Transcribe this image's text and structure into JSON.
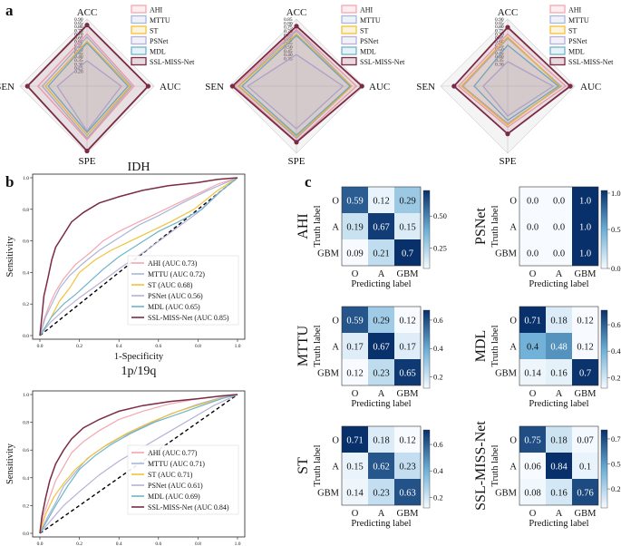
{
  "panel_labels": {
    "a": "a",
    "b": "b",
    "c": "c"
  },
  "series_colors": {
    "AHI": "#f4a6b0",
    "MTTU": "#a9b7d8",
    "ST": "#f2c23a",
    "PSNet": "#b8b0d8",
    "MDL": "#6fb5cc",
    "SSL-MISS-Net": "#7b2b44",
    "diagonal": "#000000"
  },
  "chart_data": [
    {
      "type": "radar",
      "id": "radar-1",
      "axes": [
        "ACC",
        "AUC",
        "SPE",
        "SEN"
      ],
      "tick_labels": [
        "0.90",
        "0.85",
        "0.80",
        "0.75",
        "0.70",
        "0.65",
        "0.60",
        "0.55",
        "0.50",
        "0.45",
        "0.40",
        "0.35",
        "0.30",
        "0.25",
        "0.20"
      ],
      "range": [
        0.0,
        0.9
      ],
      "legend": [
        "AHI",
        "MTTU",
        "ST",
        "PSNet",
        "MDL",
        "SSL-MISS-Net"
      ],
      "series": [
        {
          "name": "AHI",
          "values": [
            0.7,
            0.63,
            0.72,
            0.66
          ]
        },
        {
          "name": "MTTU",
          "values": [
            0.66,
            0.6,
            0.7,
            0.6
          ]
        },
        {
          "name": "ST",
          "values": [
            0.6,
            0.58,
            0.66,
            0.56
          ]
        },
        {
          "name": "PSNet",
          "values": [
            0.34,
            0.46,
            0.6,
            0.4
          ]
        },
        {
          "name": "MDL",
          "values": [
            0.58,
            0.55,
            0.62,
            0.52
          ]
        },
        {
          "name": "SSL-MISS-Net",
          "values": [
            0.82,
            0.82,
            0.87,
            0.8
          ]
        }
      ]
    },
    {
      "type": "radar",
      "id": "radar-2",
      "axes": [
        "ACC",
        "AUC",
        "SPE",
        "SEN"
      ],
      "tick_labels": [
        "0.85",
        "0.80",
        "0.75",
        "0.70",
        "0.65",
        "0.60",
        "0.55",
        "0.50",
        "0.45",
        "0.40",
        "0.35"
      ],
      "range": [
        0.0,
        0.85
      ],
      "legend": [
        "AHI",
        "MTTU",
        "ST",
        "PSNet",
        "MDL",
        "SSL-MISS-Net"
      ],
      "series": [
        {
          "name": "AHI",
          "values": [
            0.72,
            0.76,
            0.7,
            0.78
          ]
        },
        {
          "name": "MTTU",
          "values": [
            0.7,
            0.7,
            0.66,
            0.74
          ]
        },
        {
          "name": "ST",
          "values": [
            0.66,
            0.7,
            0.64,
            0.73
          ]
        },
        {
          "name": "PSNet",
          "values": [
            0.4,
            0.59,
            0.54,
            0.62
          ]
        },
        {
          "name": "MDL",
          "values": [
            0.64,
            0.68,
            0.62,
            0.69
          ]
        },
        {
          "name": "SSL-MISS-Net",
          "values": [
            0.76,
            0.83,
            0.71,
            0.81
          ]
        }
      ]
    },
    {
      "type": "radar",
      "id": "radar-3",
      "axes": [
        "ACC",
        "AUC",
        "SPE",
        "SEN"
      ],
      "tick_labels": [
        "0.90",
        "0.85",
        "0.80",
        "0.75",
        "0.70",
        "0.65",
        "0.60",
        "0.55",
        "0.50",
        "0.45",
        "0.40",
        "0.35",
        "0.30"
      ],
      "range": [
        0.0,
        0.9
      ],
      "legend": [
        "AHI",
        "MTTU",
        "ST",
        "PSNet",
        "MDL",
        "SSL-MISS-Net"
      ],
      "series": [
        {
          "name": "AHI",
          "values": [
            0.7,
            0.78,
            0.55,
            0.66
          ]
        },
        {
          "name": "MTTU",
          "values": [
            0.64,
            0.72,
            0.5,
            0.6
          ]
        },
        {
          "name": "ST",
          "values": [
            0.66,
            0.7,
            0.52,
            0.62
          ]
        },
        {
          "name": "PSNet",
          "values": [
            0.33,
            0.61,
            0.4,
            0.33
          ]
        },
        {
          "name": "MDL",
          "values": [
            0.55,
            0.68,
            0.46,
            0.45
          ]
        },
        {
          "name": "SSL-MISS-Net",
          "values": [
            0.79,
            0.84,
            0.64,
            0.72
          ]
        }
      ]
    },
    {
      "type": "line",
      "id": "roc-idh",
      "title": "IDH",
      "xlabel": "1-Specificity",
      "ylabel": "Sensitivity",
      "xlim": [
        0.0,
        1.0
      ],
      "ylim": [
        0.0,
        1.0
      ],
      "xticks": [
        "0.0",
        "0.2",
        "0.4",
        "0.6",
        "0.8",
        "1.0"
      ],
      "yticks": [
        "0.0",
        "0.2",
        "0.4",
        "0.6",
        "0.8",
        "1.0"
      ],
      "legend_position": "bottom-right",
      "series": [
        {
          "name": "AHI",
          "label": "AHI (AUC 0.73)",
          "x": [
            0,
            0.02,
            0.05,
            0.08,
            0.12,
            0.18,
            0.25,
            0.32,
            0.4,
            0.5,
            0.6,
            0.7,
            0.8,
            0.9,
            1.0
          ],
          "y": [
            0,
            0.1,
            0.2,
            0.28,
            0.36,
            0.45,
            0.52,
            0.6,
            0.66,
            0.72,
            0.78,
            0.84,
            0.9,
            0.96,
            1.0
          ]
        },
        {
          "name": "MTTU",
          "label": "MTTU (AUC 0.72)",
          "x": [
            0,
            0.03,
            0.06,
            0.1,
            0.15,
            0.22,
            0.3,
            0.4,
            0.5,
            0.6,
            0.72,
            0.85,
            1.0
          ],
          "y": [
            0,
            0.12,
            0.2,
            0.3,
            0.38,
            0.46,
            0.54,
            0.62,
            0.7,
            0.76,
            0.84,
            0.92,
            1.0
          ]
        },
        {
          "name": "ST",
          "label": "ST (AUC 0.68)",
          "x": [
            0,
            0.05,
            0.1,
            0.15,
            0.2,
            0.28,
            0.36,
            0.46,
            0.56,
            0.66,
            0.78,
            0.9,
            1.0
          ],
          "y": [
            0,
            0.1,
            0.22,
            0.3,
            0.4,
            0.48,
            0.54,
            0.6,
            0.66,
            0.72,
            0.8,
            0.92,
            1.0
          ]
        },
        {
          "name": "PSNet",
          "label": "PSNet (AUC 0.56)",
          "x": [
            0,
            0.05,
            0.12,
            0.2,
            0.3,
            0.42,
            0.55,
            0.68,
            0.8,
            0.9,
            1.0
          ],
          "y": [
            0,
            0.08,
            0.16,
            0.24,
            0.33,
            0.44,
            0.55,
            0.67,
            0.78,
            0.9,
            1.0
          ]
        },
        {
          "name": "MDL",
          "label": "MDL (AUC 0.65)",
          "x": [
            0,
            0.06,
            0.12,
            0.18,
            0.25,
            0.32,
            0.4,
            0.5,
            0.6,
            0.7,
            0.82,
            0.92,
            1.0
          ],
          "y": [
            0,
            0.12,
            0.2,
            0.26,
            0.34,
            0.42,
            0.5,
            0.58,
            0.66,
            0.72,
            0.8,
            0.92,
            1.0
          ]
        },
        {
          "name": "SSL-MISS-Net",
          "label": "SSL-MISS-Net (AUC 0.85)",
          "x": [
            0,
            0.01,
            0.02,
            0.04,
            0.06,
            0.08,
            0.12,
            0.16,
            0.22,
            0.3,
            0.4,
            0.52,
            0.65,
            0.8,
            0.9,
            1.0
          ],
          "y": [
            0,
            0.12,
            0.25,
            0.36,
            0.48,
            0.56,
            0.64,
            0.72,
            0.78,
            0.84,
            0.88,
            0.92,
            0.95,
            0.97,
            0.99,
            1.0
          ]
        }
      ]
    },
    {
      "type": "line",
      "id": "roc-1p19q",
      "title": "1p/19q",
      "xlabel": "1-Specificity",
      "ylabel": "Sensitivity",
      "xlim": [
        0.0,
        1.0
      ],
      "ylim": [
        0.0,
        1.0
      ],
      "xticks": [
        "0.0",
        "0.2",
        "0.4",
        "0.6",
        "0.8",
        "1.0"
      ],
      "yticks": [
        "0.0",
        "0.2",
        "0.4",
        "0.6",
        "0.8",
        "1.0"
      ],
      "legend_position": "bottom-right",
      "series": [
        {
          "name": "AHI",
          "label": "AHI (AUC 0.77)",
          "x": [
            0,
            0.02,
            0.05,
            0.08,
            0.12,
            0.16,
            0.22,
            0.3,
            0.4,
            0.52,
            0.65,
            0.8,
            0.92,
            1.0
          ],
          "y": [
            0,
            0.14,
            0.26,
            0.38,
            0.48,
            0.58,
            0.66,
            0.74,
            0.82,
            0.88,
            0.93,
            0.97,
            0.99,
            1.0
          ]
        },
        {
          "name": "MTTU",
          "label": "MTTU (AUC 0.71)",
          "x": [
            0,
            0.04,
            0.08,
            0.12,
            0.18,
            0.24,
            0.32,
            0.42,
            0.54,
            0.66,
            0.8,
            0.92,
            1.0
          ],
          "y": [
            0,
            0.12,
            0.22,
            0.34,
            0.44,
            0.54,
            0.62,
            0.7,
            0.78,
            0.86,
            0.93,
            0.98,
            1.0
          ]
        },
        {
          "name": "ST",
          "label": "ST (AUC 0.71)",
          "x": [
            0,
            0.03,
            0.07,
            0.12,
            0.18,
            0.26,
            0.34,
            0.44,
            0.56,
            0.7,
            0.84,
            0.94,
            1.0
          ],
          "y": [
            0,
            0.14,
            0.26,
            0.36,
            0.46,
            0.56,
            0.64,
            0.72,
            0.8,
            0.88,
            0.94,
            0.98,
            1.0
          ]
        },
        {
          "name": "PSNet",
          "label": "PSNet (AUC 0.61)",
          "x": [
            0,
            0.06,
            0.12,
            0.2,
            0.3,
            0.4,
            0.52,
            0.64,
            0.76,
            0.88,
            1.0
          ],
          "y": [
            0,
            0.1,
            0.2,
            0.3,
            0.42,
            0.52,
            0.62,
            0.72,
            0.82,
            0.92,
            1.0
          ]
        },
        {
          "name": "MDL",
          "label": "MDL (AUC 0.69)",
          "x": [
            0,
            0.04,
            0.08,
            0.14,
            0.2,
            0.28,
            0.36,
            0.46,
            0.58,
            0.7,
            0.82,
            0.92,
            1.0
          ],
          "y": [
            0,
            0.1,
            0.2,
            0.34,
            0.46,
            0.56,
            0.64,
            0.72,
            0.8,
            0.86,
            0.92,
            0.97,
            1.0
          ]
        },
        {
          "name": "SSL-MISS-Net",
          "label": "SSL-MISS-Net (AUC 0.84)",
          "x": [
            0,
            0.01,
            0.03,
            0.05,
            0.08,
            0.12,
            0.16,
            0.22,
            0.3,
            0.4,
            0.52,
            0.66,
            0.8,
            0.92,
            1.0
          ],
          "y": [
            0,
            0.12,
            0.26,
            0.38,
            0.5,
            0.6,
            0.68,
            0.76,
            0.82,
            0.88,
            0.92,
            0.95,
            0.97,
            0.99,
            1.0
          ]
        }
      ]
    },
    {
      "type": "heatmap",
      "id": "cm-ahi",
      "model": "AHI",
      "xlabel": "Predicting label",
      "ylabel": "Truth label",
      "classes": [
        "O",
        "A",
        "GBM"
      ],
      "values": [
        [
          "0.59",
          "0.12",
          "0.29"
        ],
        [
          "0.19",
          "0.67",
          "0.15"
        ],
        [
          "0.09",
          "0.21",
          "0.7"
        ]
      ],
      "colorbar_ticks": [
        "0.50",
        "0.25"
      ],
      "colorbar_range": [
        0.09,
        0.7
      ]
    },
    {
      "type": "heatmap",
      "id": "cm-psnet",
      "model": "PSNet",
      "xlabel": "Predicting label",
      "ylabel": "Truth label",
      "classes": [
        "O",
        "A",
        "GBM"
      ],
      "values": [
        [
          "0.0",
          "0.0",
          "1.0"
        ],
        [
          "0.0",
          "0.0",
          "1.0"
        ],
        [
          "0.0",
          "0.0",
          "1.0"
        ]
      ],
      "colorbar_ticks": [
        "1.0",
        "0.5",
        "0.0"
      ],
      "colorbar_range": [
        0.0,
        1.0
      ]
    },
    {
      "type": "heatmap",
      "id": "cm-mttu",
      "model": "MTTU",
      "xlabel": "Predicting label",
      "ylabel": "Truth label",
      "classes": [
        "O",
        "A",
        "GBM"
      ],
      "values": [
        [
          "0.59",
          "0.29",
          "0.12"
        ],
        [
          "0.17",
          "0.67",
          "0.17"
        ],
        [
          "0.12",
          "0.23",
          "0.65"
        ]
      ],
      "colorbar_ticks": [
        "0.6",
        "0.4",
        "0.2"
      ],
      "colorbar_range": [
        0.12,
        0.67
      ]
    },
    {
      "type": "heatmap",
      "id": "cm-mdl",
      "model": "MDL",
      "xlabel": "Predicting label",
      "ylabel": "Truth label",
      "classes": [
        "O",
        "A",
        "GBM"
      ],
      "values": [
        [
          "0.71",
          "0.18",
          "0.12"
        ],
        [
          "0.4",
          "0.48",
          "0.12"
        ],
        [
          "0.14",
          "0.16",
          "0.7"
        ]
      ],
      "colorbar_ticks": [
        "0.6",
        "0.4",
        "0.2"
      ],
      "colorbar_range": [
        0.12,
        0.71
      ]
    },
    {
      "type": "heatmap",
      "id": "cm-st",
      "model": "ST",
      "xlabel": "Predicting label",
      "ylabel": "Truth label",
      "classes": [
        "O",
        "A",
        "GBM"
      ],
      "values": [
        [
          "0.71",
          "0.18",
          "0.12"
        ],
        [
          "0.15",
          "0.62",
          "0.23"
        ],
        [
          "0.14",
          "0.23",
          "0.63"
        ]
      ],
      "colorbar_ticks": [
        "0.6",
        "0.4",
        "0.2"
      ],
      "colorbar_range": [
        0.12,
        0.71
      ]
    },
    {
      "type": "heatmap",
      "id": "cm-sslmissnet",
      "model": "SSL-MISS-Net",
      "xlabel": "Predicting label",
      "ylabel": "Truth label",
      "classes": [
        "O",
        "A",
        "GBM"
      ],
      "values": [
        [
          "0.75",
          "0.18",
          "0.07"
        ],
        [
          "0.06",
          "0.84",
          "0.1"
        ],
        [
          "0.08",
          "0.16",
          "0.76"
        ]
      ],
      "colorbar_ticks": [
        "0.75",
        "0.50",
        "0.25"
      ],
      "colorbar_range": [
        0.06,
        0.84
      ]
    }
  ]
}
